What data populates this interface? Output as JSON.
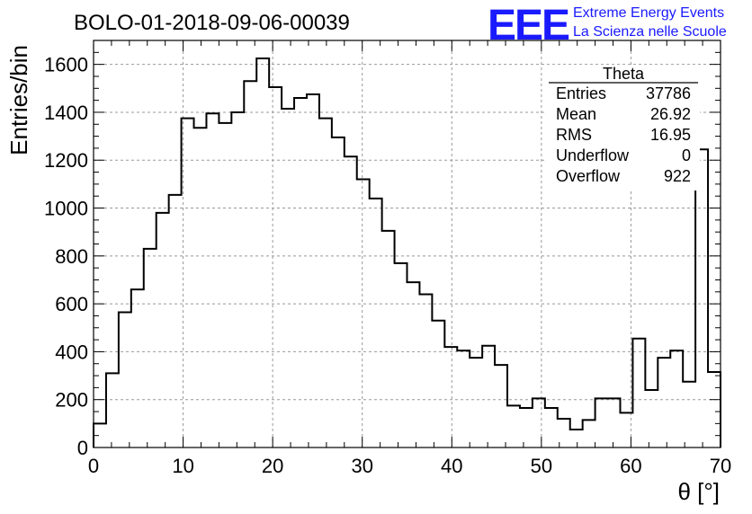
{
  "header": {
    "title": "BOLO-01-2018-09-06-00039",
    "logo_mark": "EEE",
    "logo_line1": "Extreme Energy Events",
    "logo_line2": "La Scienza nelle Scuole"
  },
  "stats": {
    "name": "Theta",
    "rows": [
      {
        "label": "Entries",
        "value": "37786"
      },
      {
        "label": "Mean",
        "value": "26.92"
      },
      {
        "label": "RMS",
        "value": "16.95"
      },
      {
        "label": "Underflow",
        "value": "0"
      },
      {
        "label": "Overflow",
        "value": "922"
      }
    ]
  },
  "colors": {
    "histogram": "#000000",
    "grid": "#999999",
    "logo": "#1a1aff"
  },
  "chart_data": {
    "type": "bar",
    "subtype": "histogram-step",
    "title": "BOLO-01-2018-09-06-00039",
    "xlabel": "θ [°]",
    "ylabel": "Entries/bin",
    "xlim": [
      0,
      70
    ],
    "ylim": [
      0,
      1700
    ],
    "grid": true,
    "x_ticks": [
      0,
      10,
      20,
      30,
      40,
      50,
      60,
      70
    ],
    "y_ticks": [
      0,
      200,
      400,
      600,
      800,
      1000,
      1200,
      1400,
      1600
    ],
    "bin_width": 1.4,
    "bin_edges_start": 0,
    "values": [
      100,
      310,
      565,
      660,
      830,
      980,
      1055,
      1375,
      1335,
      1395,
      1355,
      1400,
      1530,
      1625,
      1505,
      1415,
      1460,
      1475,
      1375,
      1295,
      1215,
      1120,
      1040,
      905,
      770,
      690,
      640,
      530,
      420,
      405,
      375,
      425,
      345,
      175,
      165,
      205,
      165,
      120,
      75,
      115,
      205,
      205,
      145,
      455,
      240,
      375,
      405,
      275,
      1245,
      315
    ]
  }
}
